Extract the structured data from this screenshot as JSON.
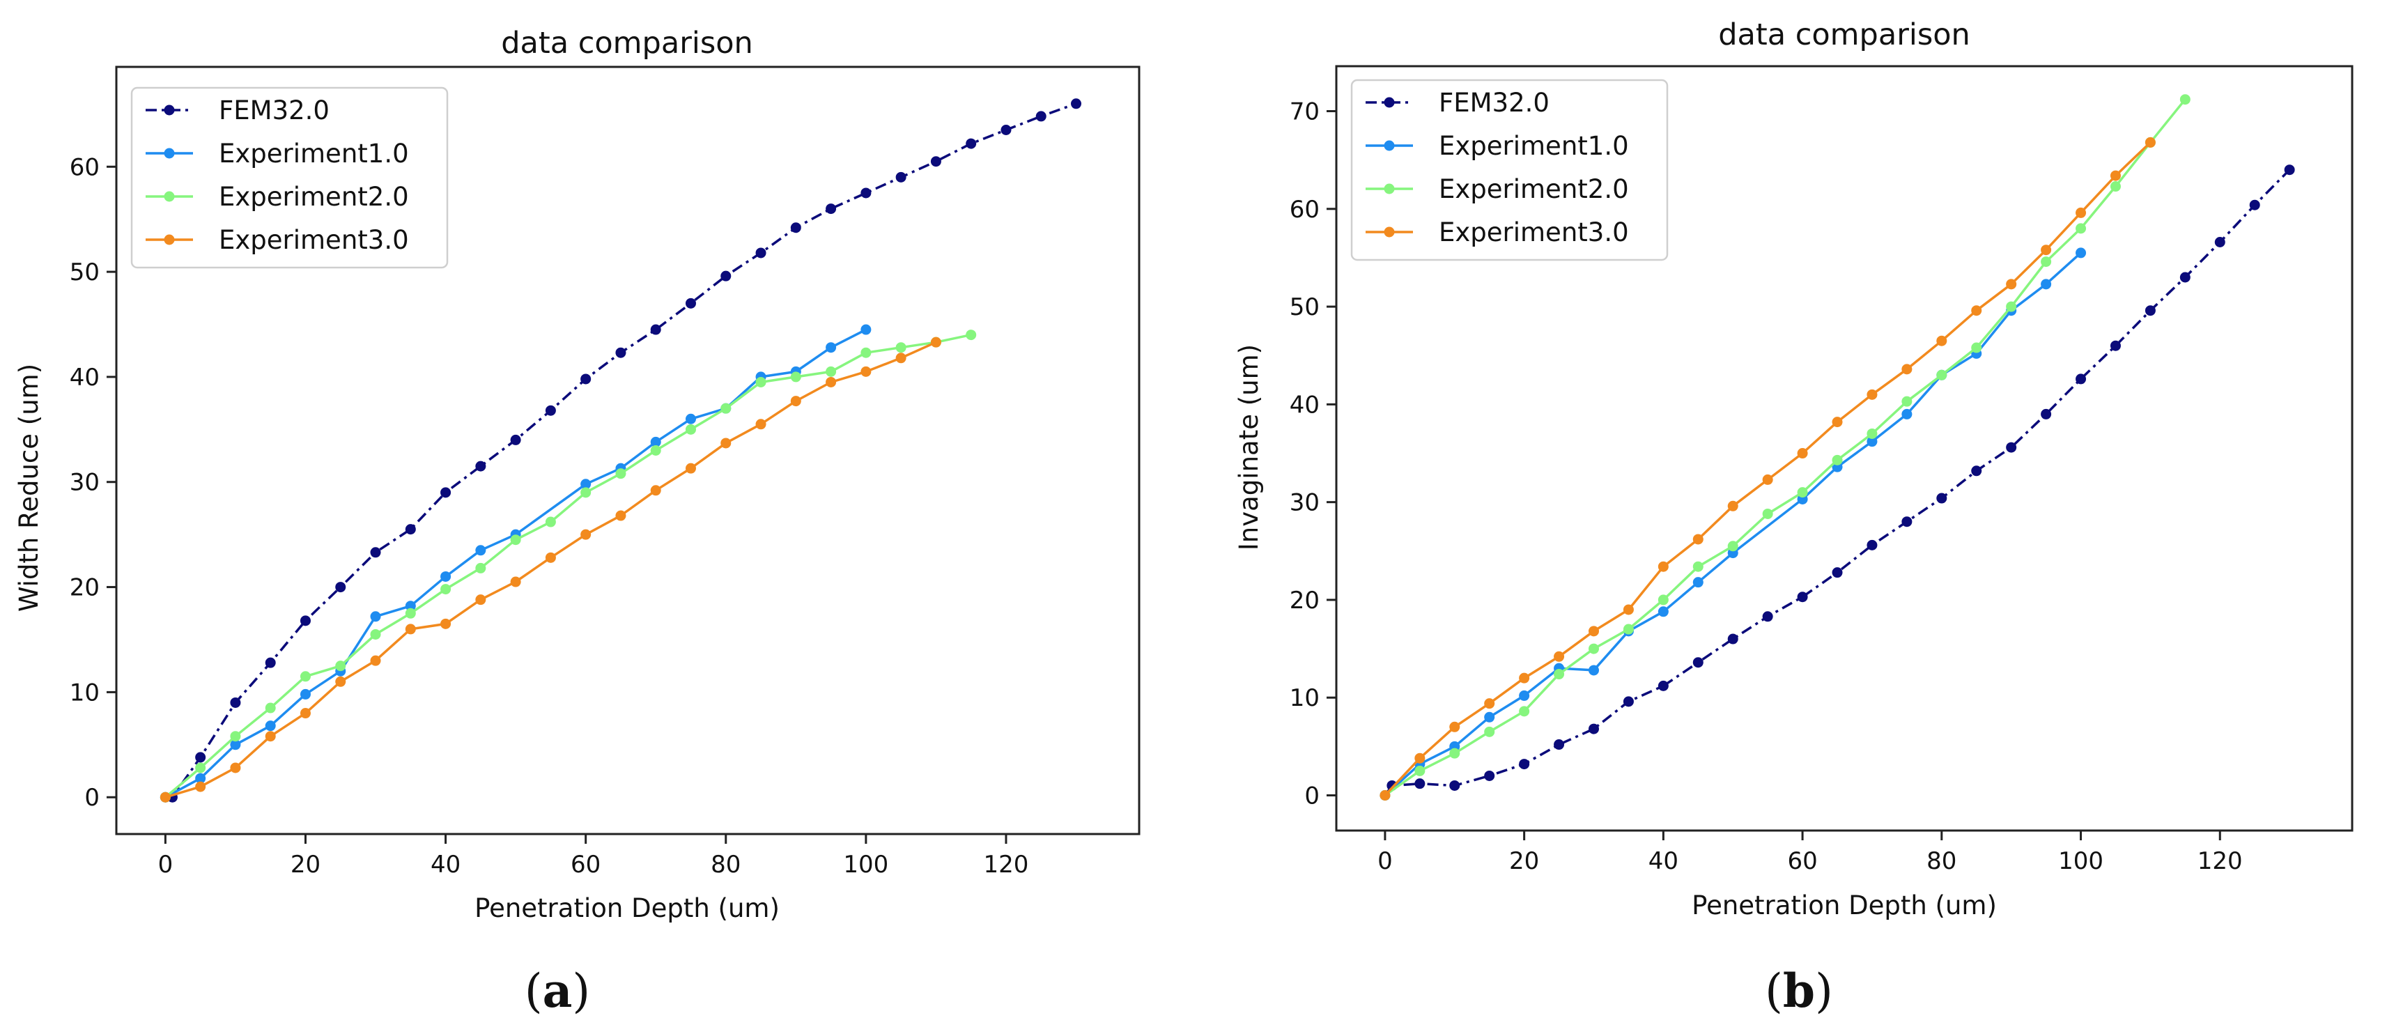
{
  "colors": {
    "FEM32.0": "#0b0b7a",
    "Experiment1.0": "#1e8cf0",
    "Experiment2.0": "#86f57e",
    "Experiment3.0": "#f28a1e"
  },
  "chart_data": [
    {
      "type": "line",
      "panel_label": "(a)",
      "panel_letter": "a",
      "title": "data comparison",
      "xlabel": "Penetration Depth (um)",
      "ylabel": "Width Reduce (um)",
      "xlim": [
        -7,
        139
      ],
      "ylim": [
        -3.5,
        69.5
      ],
      "xticks": [
        0,
        20,
        40,
        60,
        80,
        100,
        120
      ],
      "yticks": [
        0,
        10,
        20,
        30,
        40,
        50,
        60
      ],
      "legend_position": "upper-left",
      "series": [
        {
          "name": "FEM32.0",
          "style": "dashdot",
          "x": [
            0,
            1,
            5,
            10,
            15,
            20,
            25,
            30,
            35,
            40,
            45,
            50,
            55,
            60,
            65,
            70,
            75,
            80,
            85,
            90,
            95,
            100,
            105,
            110,
            115,
            120,
            125,
            130
          ],
          "y": [
            0,
            0,
            3.8,
            9.0,
            12.8,
            16.8,
            20.0,
            23.3,
            25.5,
            29.0,
            31.5,
            34.0,
            36.8,
            39.8,
            42.3,
            44.5,
            47.0,
            49.6,
            51.8,
            54.2,
            56.0,
            57.5,
            59.0,
            60.5,
            62.2,
            63.5,
            64.8,
            66.0
          ]
        },
        {
          "name": "Experiment1.0",
          "style": "solid",
          "x": [
            0,
            5,
            10,
            15,
            20,
            25,
            30,
            35,
            40,
            45,
            50,
            60,
            65,
            70,
            75,
            80,
            85,
            90,
            95,
            100
          ],
          "y": [
            0,
            1.8,
            5.0,
            6.8,
            9.8,
            12.0,
            17.2,
            18.2,
            21.0,
            23.5,
            25.0,
            29.8,
            31.3,
            33.8,
            36.0,
            37.0,
            40.0,
            40.5,
            42.8,
            44.5
          ]
        },
        {
          "name": "Experiment2.0",
          "style": "solid",
          "x": [
            0,
            5,
            10,
            15,
            20,
            25,
            30,
            35,
            40,
            45,
            50,
            55,
            60,
            65,
            70,
            75,
            80,
            85,
            90,
            95,
            100,
            105,
            110,
            115
          ],
          "y": [
            0,
            2.8,
            5.8,
            8.5,
            11.5,
            12.5,
            15.5,
            17.5,
            19.8,
            21.8,
            24.5,
            26.2,
            29.0,
            30.8,
            33.0,
            35.0,
            37.0,
            39.5,
            40.0,
            40.5,
            42.3,
            42.8,
            43.3,
            44.0
          ]
        },
        {
          "name": "Experiment3.0",
          "style": "solid",
          "x": [
            0,
            5,
            10,
            15,
            20,
            25,
            30,
            35,
            40,
            45,
            50,
            55,
            60,
            65,
            70,
            75,
            80,
            85,
            90,
            95,
            100,
            105,
            110
          ],
          "y": [
            0,
            1.0,
            2.8,
            5.8,
            8.0,
            11.0,
            13.0,
            16.0,
            16.5,
            18.8,
            20.5,
            22.8,
            25.0,
            26.8,
            29.2,
            31.3,
            33.7,
            35.5,
            37.7,
            39.5,
            40.5,
            41.8,
            43.3
          ]
        }
      ]
    },
    {
      "type": "line",
      "panel_label": "(b)",
      "panel_letter": "b",
      "title": "data comparison",
      "xlabel": "Penetration Depth (um)",
      "ylabel": "Invaginate (um)",
      "xlim": [
        -7,
        139
      ],
      "ylim": [
        -3.6,
        74.6
      ],
      "xticks": [
        0,
        20,
        40,
        60,
        80,
        100,
        120
      ],
      "yticks": [
        0,
        10,
        20,
        30,
        40,
        50,
        60,
        70
      ],
      "legend_position": "upper-left",
      "series": [
        {
          "name": "FEM32.0",
          "style": "dashdot",
          "x": [
            0,
            1,
            5,
            10,
            15,
            20,
            25,
            30,
            35,
            40,
            45,
            50,
            55,
            60,
            65,
            70,
            75,
            80,
            85,
            90,
            95,
            100,
            105,
            110,
            115,
            120,
            125,
            130
          ],
          "y": [
            0,
            1.0,
            1.2,
            1.0,
            2.0,
            3.2,
            5.2,
            6.8,
            9.6,
            11.2,
            13.6,
            16.0,
            18.3,
            20.3,
            22.8,
            25.6,
            28.0,
            30.4,
            33.2,
            35.6,
            39.0,
            42.6,
            46.0,
            49.6,
            53.0,
            56.6,
            60.4,
            64.0
          ]
        },
        {
          "name": "Experiment1.0",
          "style": "solid",
          "x": [
            0,
            5,
            10,
            15,
            20,
            25,
            30,
            35,
            40,
            45,
            50,
            60,
            65,
            70,
            75,
            80,
            85,
            90,
            95,
            100
          ],
          "y": [
            0,
            3.2,
            5.0,
            8.0,
            10.2,
            13.0,
            12.8,
            16.8,
            18.8,
            21.8,
            24.8,
            30.3,
            33.6,
            36.2,
            39.0,
            43.0,
            45.2,
            49.6,
            52.3,
            55.5
          ]
        },
        {
          "name": "Experiment2.0",
          "style": "solid",
          "x": [
            0,
            5,
            10,
            15,
            20,
            25,
            30,
            35,
            40,
            45,
            50,
            55,
            60,
            65,
            70,
            75,
            80,
            85,
            90,
            95,
            100,
            105,
            110,
            115
          ],
          "y": [
            0,
            2.5,
            4.3,
            6.5,
            8.6,
            12.4,
            15.0,
            17.0,
            20.0,
            23.4,
            25.5,
            28.8,
            31.0,
            34.3,
            37.0,
            40.3,
            43.0,
            45.8,
            50.0,
            54.6,
            58.0,
            62.3,
            66.8,
            71.2
          ]
        },
        {
          "name": "Experiment3.0",
          "style": "solid",
          "x": [
            0,
            5,
            10,
            15,
            20,
            25,
            30,
            35,
            40,
            45,
            50,
            55,
            60,
            65,
            70,
            75,
            80,
            85,
            90,
            95,
            100,
            105,
            110
          ],
          "y": [
            0,
            3.8,
            7.0,
            9.4,
            12.0,
            14.2,
            16.8,
            19.0,
            23.4,
            26.2,
            29.6,
            32.3,
            35.0,
            38.2,
            41.0,
            43.6,
            46.5,
            49.6,
            52.3,
            55.8,
            59.6,
            63.4,
            66.8
          ]
        }
      ]
    }
  ]
}
